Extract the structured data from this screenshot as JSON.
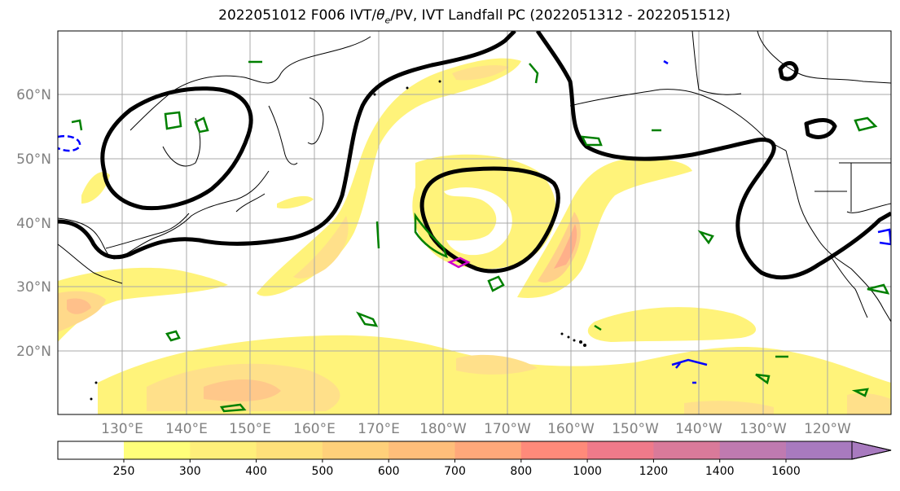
{
  "title": {
    "prefix": "2022051012 F006 IVT/",
    "theta": "θ",
    "theta_sub": "e",
    "suffix": "/PV, IVT Landfall PC (2022051312 - 2022051512)"
  },
  "map": {
    "lat_labels": [
      "60°N",
      "50°N",
      "40°N",
      "30°N",
      "20°N"
    ],
    "lon_labels": [
      "130°E",
      "140°E",
      "150°E",
      "160°E",
      "170°E",
      "180°W",
      "170°W",
      "160°W",
      "150°W",
      "140°W",
      "130°W",
      "120°W"
    ]
  },
  "colorbar": {
    "ticks": [
      "250",
      "300",
      "400",
      "500",
      "600",
      "700",
      "800",
      "1000",
      "1200",
      "1400",
      "1600"
    ],
    "colors": [
      "#ffff7a",
      "#ffef7a",
      "#ffe07a",
      "#ffd07a",
      "#ffbe7a",
      "#ffa87a",
      "#ff8a7a",
      "#ef7a8a",
      "#d97a9a",
      "#bf7ab0",
      "#a87abf"
    ]
  }
}
